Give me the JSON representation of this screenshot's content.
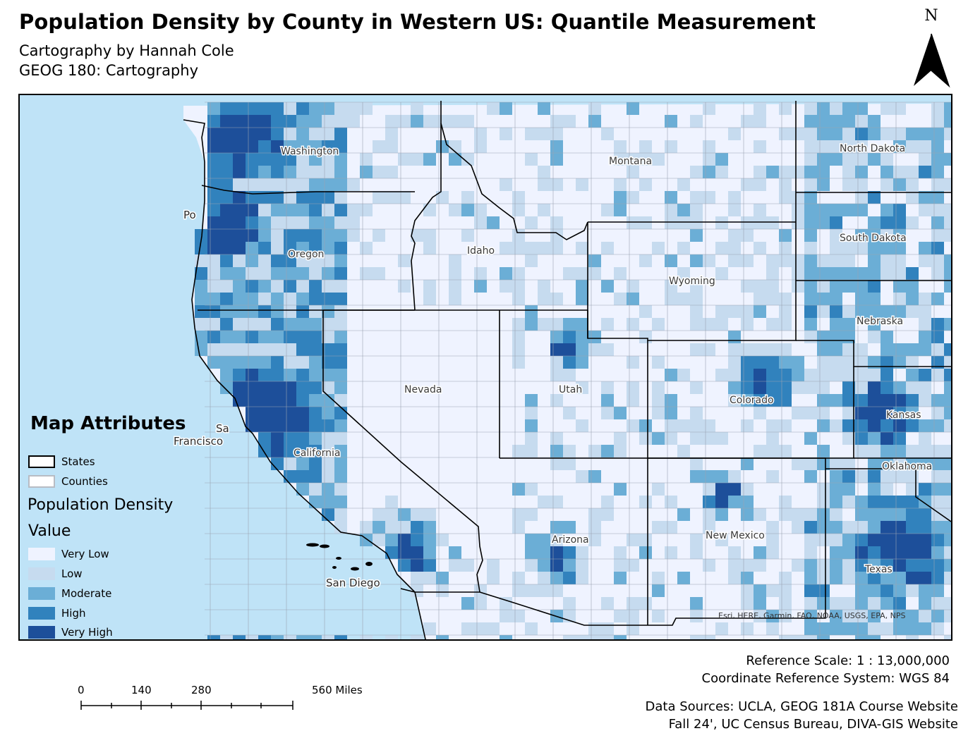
{
  "title": "Population Density by County in Western US: Quantile Measurement",
  "subtitle": "Cartography by Hannah Cole",
  "course": "GEOG 180: Cartography",
  "north_arrow": "N",
  "map": {
    "state_labels": {
      "washington": "Washington",
      "oregon": "Oregon",
      "california": "California",
      "nevada": "Nevada",
      "idaho": "Idaho",
      "montana": "Montana",
      "wyoming": "Wyoming",
      "utah": "Utah",
      "colorado": "Colorado",
      "arizona": "Arizona",
      "new_mexico": "New Mexico",
      "north_dakota": "North Dakota",
      "south_dakota": "South Dakota",
      "nebraska": "Nebraska",
      "kansas": "Kansas",
      "oklahoma": "Oklahoma",
      "texas": "Texas"
    },
    "city_labels": {
      "san_francisco_1": "Sa",
      "san_francisco_2": "Francisco",
      "san_diego": "San Diego",
      "portland": "Po"
    },
    "basemap_attribution": "Esri, HERE, Garmin, FAO, NOAA, USGS, EPA, NPS",
    "colors": {
      "ocean": "#bfe3f7",
      "very_low": "#eff3ff",
      "low": "#c6dbef",
      "moderate": "#6baed6",
      "high": "#3182bd",
      "very_high": "#1d4f9a"
    }
  },
  "legend": {
    "title": "Map Attributes",
    "states": "States",
    "counties": "Counties",
    "heading": "Population Density",
    "subheading": "Value",
    "classes": [
      "Very Low",
      "Low",
      "Moderate",
      "High",
      "Very High"
    ]
  },
  "reference_scale": "Reference Scale:  1 : 13,000,000",
  "crs": "Coordinate Reference System: WGS 84",
  "sources_1": "Data Sources: UCLA, GEOG 181A Course Website",
  "sources_2": "Fall 24', UC Census Bureau, DIVA-GIS Website",
  "scalebar": {
    "ticks": [
      "0",
      "140",
      "280",
      "560 Miles"
    ]
  }
}
